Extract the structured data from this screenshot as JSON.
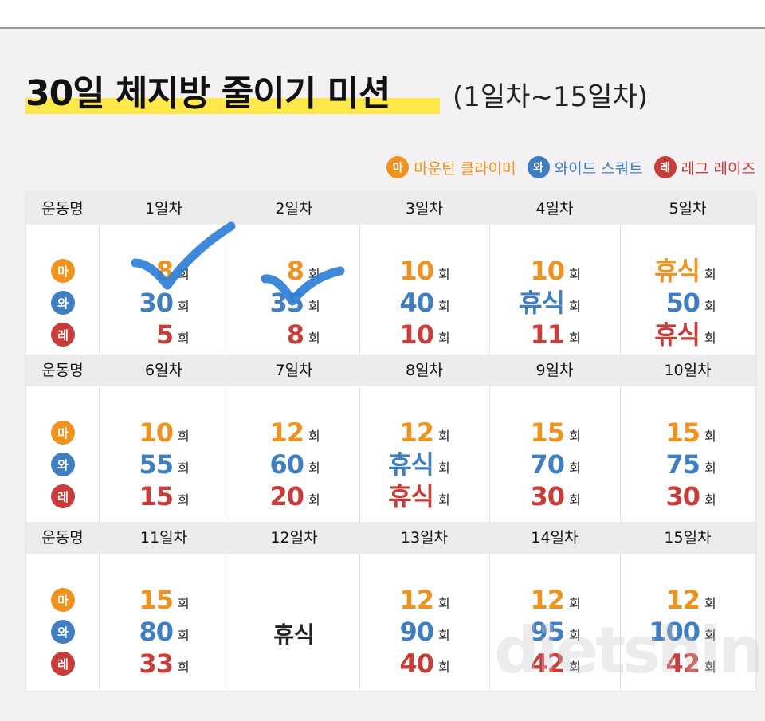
{
  "title": {
    "main": "30일 체지방 줄이기 미션",
    "sub": "(1일차~15일차)"
  },
  "legend": [
    {
      "badge": "마",
      "label": "마운틴 클라이머",
      "color": "#f0921e"
    },
    {
      "badge": "와",
      "label": "와이드 스쿼트",
      "color": "#3f7fc1"
    },
    {
      "badge": "레",
      "label": "레그 레이즈",
      "color": "#c83d3a"
    }
  ],
  "table": {
    "label_header": "운동명",
    "badges": [
      "마",
      "와",
      "레"
    ],
    "unit": "회",
    "rows": [
      {
        "days": [
          {
            "day": "1일차",
            "values": [
              "8",
              "30",
              "5"
            ],
            "checked": true
          },
          {
            "day": "2일차",
            "values": [
              "8",
              "35",
              "8"
            ],
            "checked": true
          },
          {
            "day": "3일차",
            "values": [
              "10",
              "40",
              "10"
            ]
          },
          {
            "day": "4일차",
            "values": [
              "10",
              "휴식",
              "11"
            ]
          },
          {
            "day": "5일차",
            "values": [
              "휴식",
              "50",
              "휴식"
            ]
          }
        ]
      },
      {
        "days": [
          {
            "day": "6일차",
            "values": [
              "10",
              "55",
              "15"
            ]
          },
          {
            "day": "7일차",
            "values": [
              "12",
              "60",
              "20"
            ]
          },
          {
            "day": "8일차",
            "values": [
              "12",
              "휴식",
              "휴식"
            ]
          },
          {
            "day": "9일차",
            "values": [
              "15",
              "70",
              "30"
            ]
          },
          {
            "day": "10일차",
            "values": [
              "15",
              "75",
              "30"
            ]
          }
        ]
      },
      {
        "days": [
          {
            "day": "11일차",
            "values": [
              "15",
              "80",
              "33"
            ]
          },
          {
            "day": "12일차",
            "rest_all": "휴식"
          },
          {
            "day": "13일차",
            "values": [
              "12",
              "90",
              "40"
            ]
          },
          {
            "day": "14일차",
            "values": [
              "12",
              "95",
              "42"
            ]
          },
          {
            "day": "15일차",
            "values": [
              "12",
              "100",
              "42"
            ]
          }
        ]
      }
    ]
  },
  "watermark": "dietshin.com"
}
